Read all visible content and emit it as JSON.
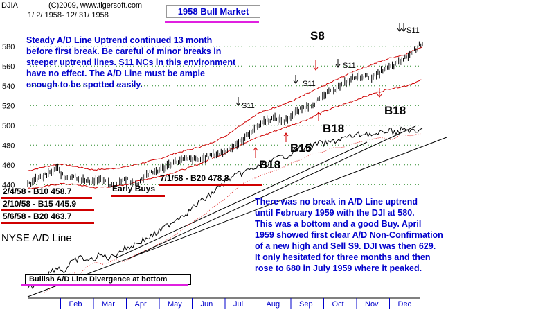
{
  "header": {
    "symbol": "DJIA",
    "copyright": "(C)2009, www.tigersoft.com",
    "date_range": "1/ 2/ 1958- 12/ 31/ 1958"
  },
  "title": "1958 Bull Market",
  "colors": {
    "price": "#000000",
    "bands": "#d00000",
    "annotation_text": "#0000cc",
    "title_underline": "#e020e0",
    "moving_average": "#e03030"
  },
  "top_note": [
    "Steady A/D Line Uptrend continued 13 month",
    "before first break.  Be careful of minor breaks in",
    "steeper uptrend lines.  S11 NCs in this environment",
    "have no effect.  The A/D Line must be  ample",
    "enough to be spotted easily."
  ],
  "bottom_note": [
    "There was no break in A/D Line uptrend",
    "until February 1959 with the DJI at 580.",
    "This was a bottom and a good Buy.  April",
    "1959 showed first clear A/D Non-Confirmation",
    "of a new high and Sell S9.  DJI was then 629.",
    "It only hesitated for three months and then",
    "rose to 680 in July 1959 where it peaked."
  ],
  "signals": {
    "s8": "S8",
    "b18_a": "B18",
    "b18_b": "B18",
    "b15": "B15",
    "b18_c": "B18",
    "s11_a": "S11",
    "s11_b": "S11",
    "s11_c": "S11",
    "s11_d": "S11"
  },
  "early_buys": "Early Buys",
  "buy_list": [
    "2/4/58 - B10  458.7",
    "2/10/58 - B15  445.9",
    "5/6/58 - B20  463.7"
  ],
  "july_buy": "7/1/58 - B20  478.8",
  "ad_line_label": "NYSE A/D Line",
  "divergence_label": "Bullish A/D Line Divergence at bottom",
  "chart_data": {
    "type": "line",
    "title": "1958 Bull Market",
    "y_ticks": [
      440,
      460,
      480,
      500,
      520,
      540,
      560,
      580
    ],
    "ylim": [
      436,
      596
    ],
    "x_months": [
      "Feb",
      "Mar",
      "Apr",
      "May",
      "Jun",
      "Jul",
      "Aug",
      "Sep",
      "Oct",
      "Nov",
      "Dec"
    ],
    "series": [
      {
        "months": [
          0,
          0.3,
          0.6,
          0.9,
          1.1,
          1.4,
          1.8,
          2.2,
          2.6,
          3.0,
          3.3,
          3.6,
          4.0,
          4.4,
          4.8,
          5.2,
          5.6,
          6.0,
          6.2,
          6.5,
          6.8,
          7.2,
          7.5,
          7.8,
          8.1,
          8.4,
          8.7,
          9.0,
          9.3,
          9.6,
          9.9,
          10.2,
          10.5,
          10.8,
          11.1,
          11.4,
          11.7,
          12.0
        ],
        "values": [
          440,
          446,
          450,
          457,
          447,
          449,
          443,
          445,
          438,
          446,
          440,
          450,
          455,
          462,
          466,
          465,
          470,
          473,
          478,
          484,
          494,
          505,
          507,
          504,
          512,
          518,
          522,
          530,
          536,
          542,
          548,
          550,
          548,
          556,
          560,
          566,
          574,
          584
        ]
      },
      {
        "months": [
          0,
          0.5,
          1.0,
          1.5,
          2.0,
          2.5,
          3.0,
          3.5,
          4.0,
          4.5,
          5.0,
          5.5,
          6.0,
          6.5,
          7.0,
          7.5,
          8.0,
          8.5,
          9.0,
          9.5,
          10.0,
          10.5,
          11.0,
          11.5,
          12.0
        ],
        "values": [
          454,
          458,
          461,
          458,
          455,
          456,
          458,
          462,
          466,
          472,
          476,
          481,
          489,
          501,
          512,
          518,
          524,
          532,
          540,
          548,
          556,
          562,
          568,
          572,
          580
        ]
      },
      {
        "months": [
          0,
          0.5,
          1.0,
          1.5,
          2.0,
          2.5,
          3.0,
          3.5,
          4.0,
          4.5,
          5.0,
          5.5,
          6.0,
          6.5,
          7.0,
          7.5,
          8.0,
          8.5,
          9.0,
          9.5,
          10.0,
          10.5,
          11.0,
          11.5,
          12.0
        ],
        "values": [
          436,
          438,
          441,
          440,
          437,
          438,
          440,
          445,
          448,
          453,
          458,
          465,
          472,
          481,
          488,
          494,
          500,
          506,
          514,
          520,
          526,
          532,
          537,
          540,
          546
        ]
      }
    ]
  }
}
